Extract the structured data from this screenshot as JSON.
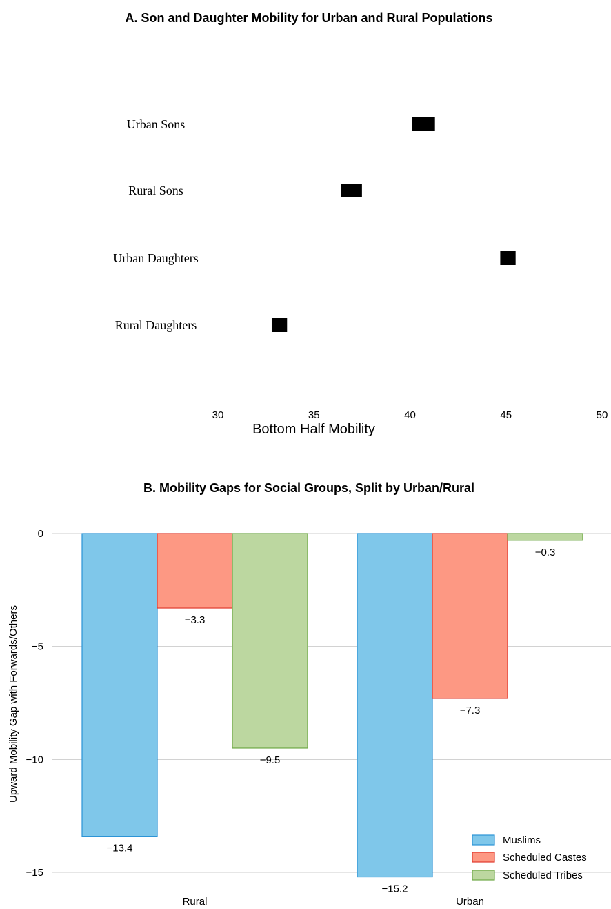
{
  "chart_data": [
    {
      "type": "scatter",
      "title": "A. Son and Daughter Mobility for Urban and Rural Populations",
      "xlabel": "Bottom Half Mobility",
      "ylabel": "",
      "xlim": [
        30,
        50
      ],
      "xticks": [
        "30",
        "35",
        "40",
        "45",
        "50"
      ],
      "grid": false,
      "marker": "square",
      "marker_color": "#000000",
      "categories": [
        "Urban Sons",
        "Rural Sons",
        "Urban Daughters",
        "Rural Daughters"
      ],
      "intervals": [
        {
          "low": 40.1,
          "high": 41.3
        },
        {
          "low": 36.4,
          "high": 37.5
        },
        {
          "low": 44.7,
          "high": 45.5
        },
        {
          "low": 32.8,
          "high": 33.6
        }
      ]
    },
    {
      "type": "bar",
      "title": "B. Mobility Gaps for Social Groups, Split by Urban/Rural",
      "xlabel": "",
      "ylabel": "Upward Mobility Gap with Forwards/Others",
      "ylim": [
        -15,
        0
      ],
      "yticks": [
        "0",
        "-5",
        "-10",
        "-15"
      ],
      "grid": true,
      "legend_position": "bottom-right",
      "categories": [
        "Rural",
        "Urban"
      ],
      "series": [
        {
          "name": "Muslims",
          "values": [
            -13.4,
            -15.2
          ],
          "labels": [
            "−13.4",
            "−15.2"
          ],
          "fill": "#7fc7ea",
          "stroke": "#2a93d5"
        },
        {
          "name": "Scheduled Castes",
          "values": [
            -3.3,
            -7.3
          ],
          "labels": [
            "−3.3",
            "−7.3"
          ],
          "fill": "#fd9883",
          "stroke": "#e0392d"
        },
        {
          "name": "Scheduled Tribes",
          "values": [
            -9.5,
            -0.3
          ],
          "labels": [
            "−9.5",
            "−0.3"
          ],
          "fill": "#bcd7a0",
          "stroke": "#6ea846"
        }
      ]
    }
  ]
}
